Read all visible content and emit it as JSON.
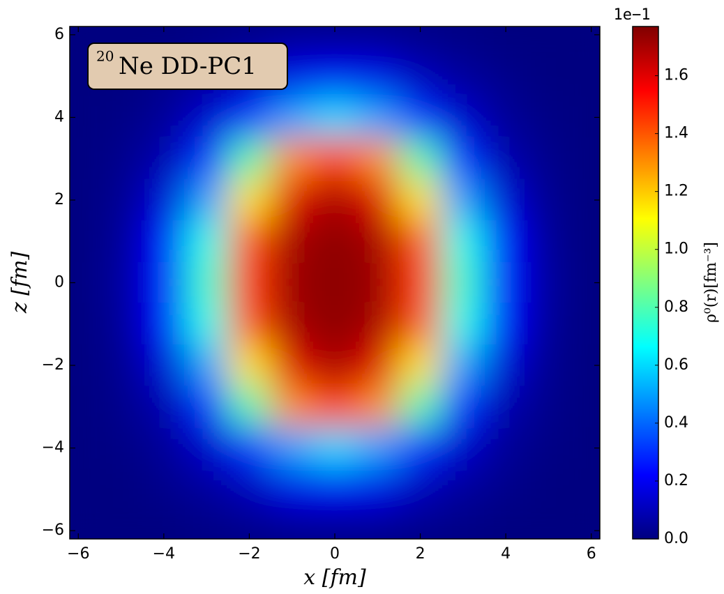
{
  "chart_data": {
    "type": "heatmap",
    "annotation_superscript": "20",
    "annotation": "Ne DD-PC1",
    "xlabel": "x [fm]",
    "ylabel": "z [fm]",
    "colorbar_label": "ρ⁰(r)[fm⁻³]",
    "colorbar_offset_label": "1e−1",
    "colormap": "jet",
    "xlim": [
      -6.2,
      6.2
    ],
    "ylim": [
      -6.2,
      6.2
    ],
    "clim": [
      0,
      1.77
    ],
    "xticks": [
      {
        "value": -6,
        "label": "−6"
      },
      {
        "value": -4,
        "label": "−4"
      },
      {
        "value": -2,
        "label": "−2"
      },
      0,
      2,
      4,
      6
    ],
    "yticks": [
      {
        "value": -6,
        "label": "−6"
      },
      {
        "value": -4,
        "label": "−4"
      },
      {
        "value": -2,
        "label": "−2"
      },
      0,
      2,
      4,
      6
    ],
    "cticks": [
      {
        "value": 0,
        "label": "0.0"
      },
      0.2,
      0.4,
      0.6,
      0.8,
      {
        "value": 1,
        "label": "1.0"
      },
      1.2,
      1.4,
      1.6
    ],
    "x": [
      -6,
      -5,
      -4,
      -3,
      -2,
      -1,
      0,
      1,
      2,
      3,
      4,
      5,
      6
    ],
    "y": [
      6,
      5,
      4,
      3,
      2,
      1,
      0,
      -1,
      -2,
      -3,
      -4,
      -5,
      -6
    ],
    "z": [
      [
        0,
        0,
        0,
        0.01,
        0.02,
        0.03,
        0.03,
        0.03,
        0.02,
        0.01,
        0,
        0,
        0
      ],
      [
        0,
        0,
        0.02,
        0.05,
        0.1,
        0.18,
        0.2,
        0.18,
        0.1,
        0.05,
        0.02,
        0,
        0
      ],
      [
        0,
        0.01,
        0.04,
        0.13,
        0.3,
        0.5,
        0.6,
        0.5,
        0.3,
        0.13,
        0.04,
        0.01,
        0
      ],
      [
        0,
        0.02,
        0.08,
        0.3,
        0.8,
        1.3,
        1.45,
        1.3,
        0.8,
        0.3,
        0.08,
        0.02,
        0
      ],
      [
        0,
        0.03,
        0.15,
        0.5,
        1.15,
        1.6,
        1.7,
        1.6,
        1.15,
        0.5,
        0.15,
        0.03,
        0
      ],
      [
        0,
        0.04,
        0.22,
        0.7,
        1.4,
        1.7,
        1.75,
        1.7,
        1.4,
        0.7,
        0.22,
        0.04,
        0
      ],
      [
        0,
        0.05,
        0.25,
        0.75,
        1.45,
        1.72,
        1.75,
        1.72,
        1.45,
        0.75,
        0.25,
        0.05,
        0
      ],
      [
        0,
        0.04,
        0.22,
        0.7,
        1.4,
        1.7,
        1.75,
        1.7,
        1.4,
        0.7,
        0.22,
        0.04,
        0
      ],
      [
        0,
        0.03,
        0.15,
        0.5,
        1.15,
        1.6,
        1.7,
        1.6,
        1.15,
        0.5,
        0.15,
        0.03,
        0
      ],
      [
        0,
        0.02,
        0.08,
        0.3,
        0.8,
        1.3,
        1.45,
        1.3,
        0.8,
        0.3,
        0.08,
        0.02,
        0
      ],
      [
        0,
        0.01,
        0.04,
        0.13,
        0.3,
        0.5,
        0.6,
        0.5,
        0.3,
        0.13,
        0.04,
        0.01,
        0
      ],
      [
        0,
        0,
        0.02,
        0.05,
        0.1,
        0.18,
        0.2,
        0.18,
        0.1,
        0.05,
        0.02,
        0,
        0
      ],
      [
        0,
        0,
        0,
        0.01,
        0.02,
        0.03,
        0.03,
        0.03,
        0.02,
        0.01,
        0,
        0,
        0
      ]
    ]
  }
}
